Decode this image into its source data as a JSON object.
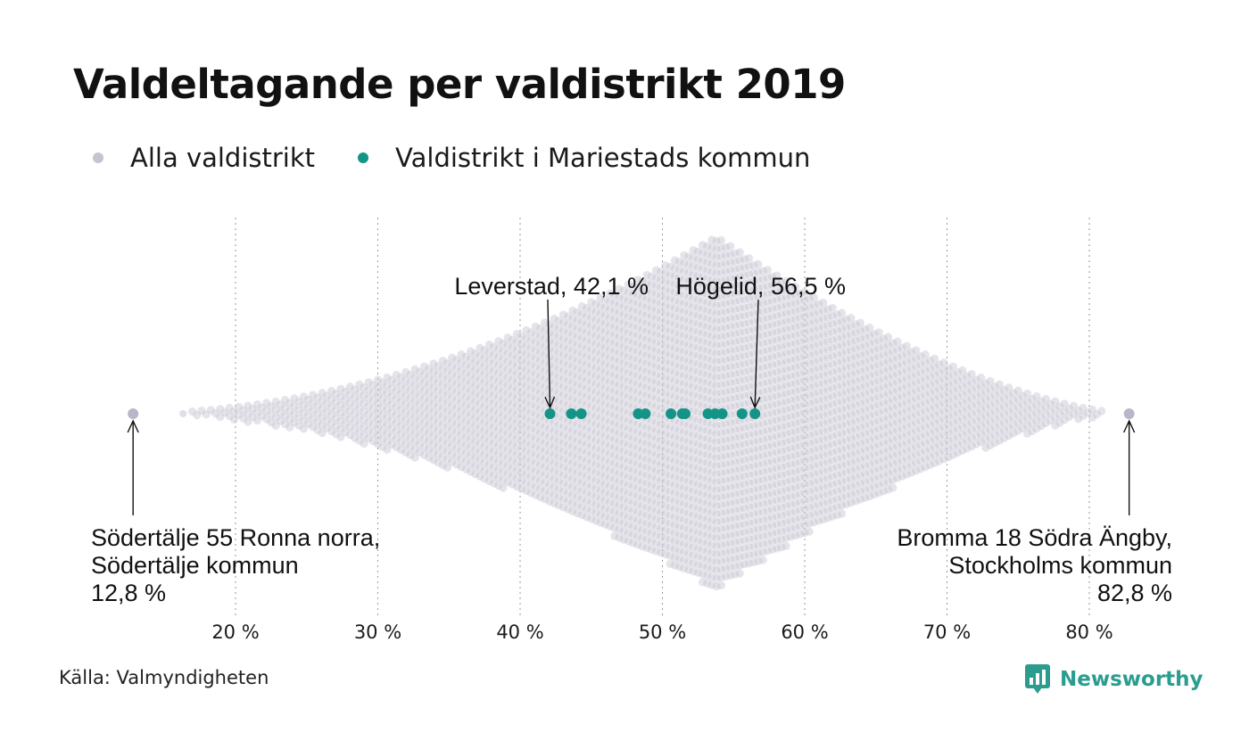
{
  "title": "Valdeltagande per valdistrikt 2019",
  "legend": {
    "all": {
      "label": "Alla valdistrikt",
      "color": "#c5c4d1"
    },
    "highlight": {
      "label": "Valdistrikt i Mariestads kommun",
      "color": "#149487"
    }
  },
  "source": "Källa: Valmyndigheten",
  "brand": {
    "name": "Newsworthy",
    "color": "#2a9d8f",
    "icon": "newsworthy-logo-icon"
  },
  "chart_data": {
    "type": "scatter",
    "subtype": "beeswarm",
    "title": "Valdeltagande per valdistrikt 2019",
    "xlabel": "",
    "ylabel": "",
    "xlim": [
      12.8,
      82.8
    ],
    "x_ticks": [
      20,
      30,
      40,
      50,
      60,
      70,
      80
    ],
    "x_tick_labels": [
      "20 %",
      "30 %",
      "40 %",
      "50 %",
      "60 %",
      "70 %",
      "80 %"
    ],
    "grid": "vertical-dotted",
    "distribution": {
      "min": 12.8,
      "peak": 53.8,
      "max": 82.8
    },
    "series": [
      {
        "name": "Valdistrikt i Mariestads kommun",
        "color": "#149487",
        "values": [
          42.1,
          43.6,
          44.3,
          48.3,
          48.8,
          50.6,
          51.4,
          51.6,
          53.2,
          53.7,
          54.2,
          55.6,
          56.5
        ]
      }
    ],
    "annotations": [
      {
        "x": 12.8,
        "lines": [
          "Södertälje 55 Ronna norra,",
          "Södertälje kommun",
          "12,8 %"
        ],
        "align": "left",
        "position": "below"
      },
      {
        "x": 82.8,
        "lines": [
          "Bromma 18 Södra Ängby,",
          "Stockholms kommun",
          "82,8 %"
        ],
        "align": "right",
        "position": "below"
      },
      {
        "x": 42.1,
        "lines": [
          "Leverstad, 42,1 %"
        ],
        "align": "right",
        "position": "above"
      },
      {
        "x": 56.5,
        "lines": [
          "Högelid, 56,5 %"
        ],
        "align": "right",
        "position": "above"
      }
    ]
  }
}
